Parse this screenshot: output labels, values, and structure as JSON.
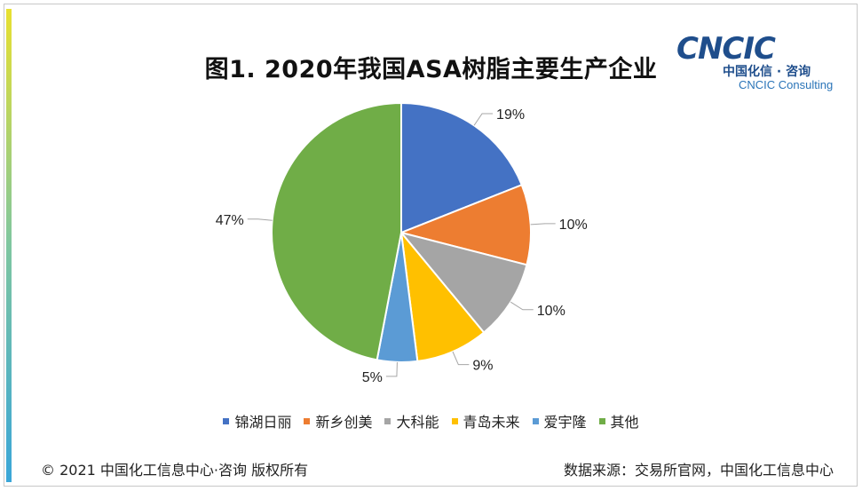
{
  "title": "图1. 2020年我国ASA树脂主要生产企业",
  "logo": {
    "main": "CNCIC",
    "cn": "中国化信 · 咨询",
    "en": "CNCIC Consulting"
  },
  "footer": {
    "copyright": "© 2021 中国化工信息中心·咨询 版权所有",
    "source": "数据来源：交易所官网，中国化工信息中心"
  },
  "chart_data": {
    "type": "pie",
    "categories": [
      "锦湖日丽",
      "新乡创美",
      "大科能",
      "青岛未来",
      "爱宇隆",
      "其他"
    ],
    "values": [
      19,
      10,
      10,
      9,
      5,
      47
    ],
    "labels": [
      "19%",
      "10%",
      "10%",
      "9%",
      "5%",
      "47%"
    ],
    "colors": [
      "#4472c4",
      "#ed7d31",
      "#a5a5a5",
      "#ffc000",
      "#5b9bd5",
      "#70ad47"
    ],
    "start_angle": "12 o'clock, clockwise",
    "legend": "bottom"
  }
}
